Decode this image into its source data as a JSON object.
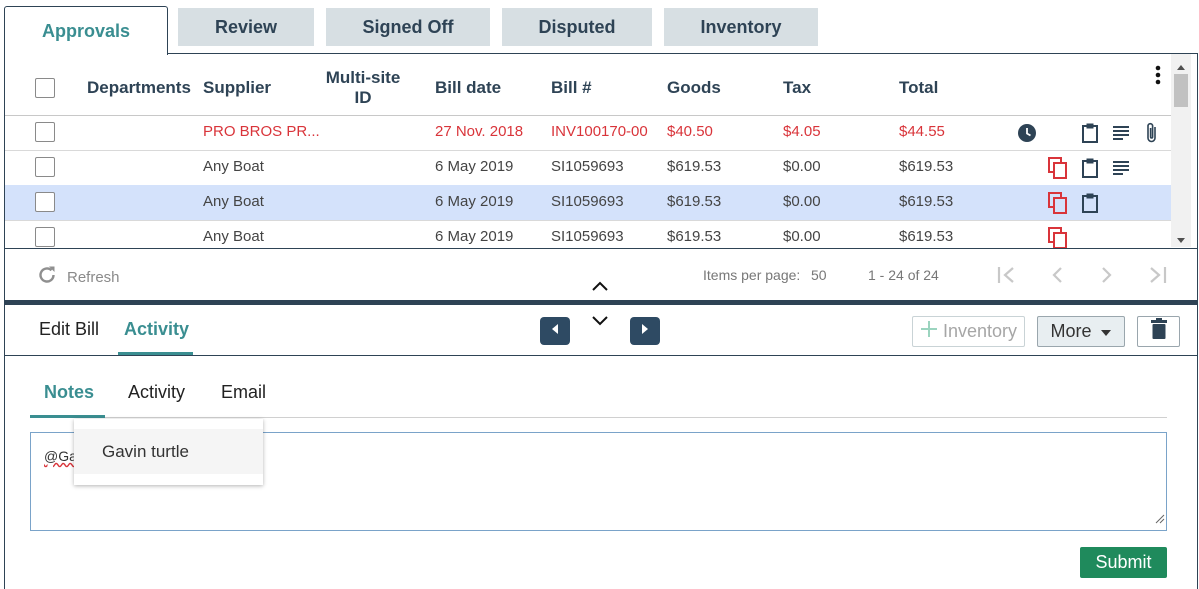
{
  "tabs": [
    "Approvals",
    "Review",
    "Signed Off",
    "Disputed",
    "Inventory"
  ],
  "table": {
    "headers": {
      "departments": "Departments",
      "supplier": "Supplier",
      "multisite_line1": "Multi-site",
      "multisite_line2": "ID",
      "bill_date": "Bill date",
      "bill_no": "Bill #",
      "goods": "Goods",
      "tax": "Tax",
      "total": "Total"
    },
    "rows": [
      {
        "supplier": "PRO BROS PR...",
        "bill_date": "27 Nov. 2018",
        "bill_no": "INV100170-00",
        "goods": "$40.50",
        "tax": "$4.05",
        "total": "$44.55"
      },
      {
        "supplier": "Any Boat",
        "bill_date": "6 May 2019",
        "bill_no": "SI1059693",
        "goods": "$619.53",
        "tax": "$0.00",
        "total": "$619.53"
      },
      {
        "supplier": "Any Boat",
        "bill_date": "6 May 2019",
        "bill_no": "SI1059693",
        "goods": "$619.53",
        "tax": "$0.00",
        "total": "$619.53"
      },
      {
        "supplier": "Any Boat",
        "bill_date": "6 May 2019",
        "bill_no": "SI1059693",
        "goods": "$619.53",
        "tax": "$0.00",
        "total": "$619.53"
      }
    ]
  },
  "pagination": {
    "refresh": "Refresh",
    "items_per_page_label": "Items per page:",
    "items_per_page_value": "50",
    "range": "1 - 24 of 24"
  },
  "detail": {
    "tabs": [
      "Edit Bill",
      "Activity"
    ],
    "inventory_button": "Inventory",
    "more_button": "More",
    "sub_tabs": [
      "Notes",
      "Activity",
      "Email"
    ],
    "note_text": "@Ga",
    "mention_suggestion": "Gavin turtle",
    "submit": "Submit"
  },
  "colors": {
    "primary_dark": "#2e4355",
    "accent_teal": "#3a8e91",
    "alert_red": "#d9343a",
    "selected_row": "#d4e2fb",
    "submit_green": "#1f8a5c"
  }
}
